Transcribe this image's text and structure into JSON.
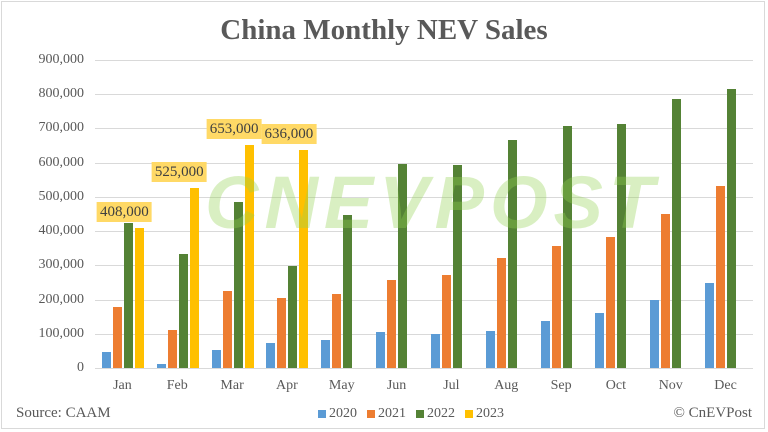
{
  "chart_data": {
    "type": "bar",
    "title": "China Monthly NEV Sales",
    "xlabel": "",
    "ylabel": "",
    "ylim": [
      0,
      900000
    ],
    "yticks": [
      "0",
      "100,000",
      "200,000",
      "300,000",
      "400,000",
      "500,000",
      "600,000",
      "700,000",
      "800,000",
      "900,000"
    ],
    "grid": true,
    "legend_position": "bottom",
    "categories": [
      "Jan",
      "Feb",
      "Mar",
      "Apr",
      "May",
      "Jun",
      "Jul",
      "Aug",
      "Sep",
      "Oct",
      "Nov",
      "Dec"
    ],
    "series": [
      {
        "name": "2020",
        "color": "#5b9bd5",
        "values": [
          46000,
          12000,
          53000,
          72000,
          82000,
          104000,
          98000,
          109000,
          138000,
          160000,
          200000,
          248000
        ]
      },
      {
        "name": "2021",
        "color": "#ed7d31",
        "values": [
          179000,
          110000,
          226000,
          206000,
          217000,
          256000,
          271000,
          321000,
          357000,
          383000,
          450000,
          531000
        ]
      },
      {
        "name": "2022",
        "color": "#548235",
        "values": [
          425000,
          334000,
          484000,
          299000,
          447000,
          596000,
          593000,
          666000,
          708000,
          714000,
          786000,
          815000
        ]
      },
      {
        "name": "2023",
        "color": "#ffc000",
        "values": [
          408000,
          525000,
          653000,
          636000,
          null,
          null,
          null,
          null,
          null,
          null,
          null,
          null
        ]
      }
    ],
    "annotations": [
      {
        "category": "Jan",
        "series": "2023",
        "text": "408,000"
      },
      {
        "category": "Feb",
        "series": "2023",
        "text": "525,000"
      },
      {
        "category": "Mar",
        "series": "2023",
        "text": "653,000"
      },
      {
        "category": "Apr",
        "series": "2023",
        "text": "636,000"
      }
    ]
  },
  "footer": {
    "source": "Source: CAAM",
    "copyright": "© CnEVPost"
  },
  "watermark": "CNEVPOST",
  "colors": {
    "s2020": "#5b9bd5",
    "s2021": "#ed7d31",
    "s2022": "#548235",
    "s2023": "#ffc000",
    "label_bg": "#ffd966"
  }
}
